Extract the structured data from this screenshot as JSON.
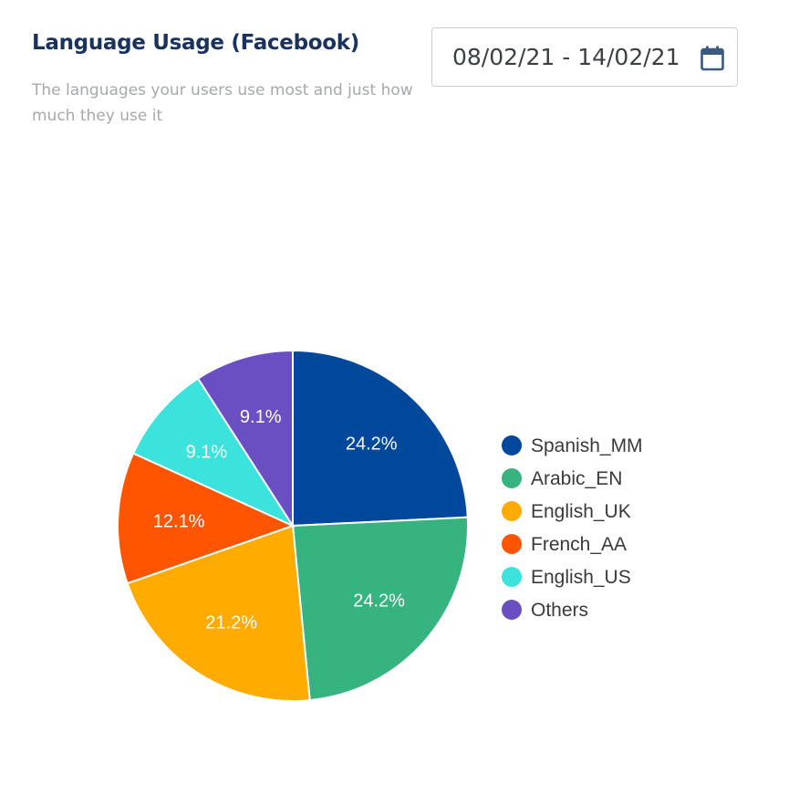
{
  "header": {
    "title": "Language Usage (Facebook)",
    "subtitle": "The languages your users use most and just how much they use it"
  },
  "date_range": {
    "value": "08/02/21 - 14/02/21",
    "icon": "calendar-icon"
  },
  "chart_data": {
    "type": "pie",
    "title": "",
    "legend_position": "right",
    "slices": [
      {
        "name": "Spanish_MM",
        "value": 24.2,
        "label": "24.2%",
        "color": "#00489c"
      },
      {
        "name": "Arabic_EN",
        "value": 24.2,
        "label": "24.2%",
        "color": "#36b37e"
      },
      {
        "name": "English_UK",
        "value": 21.2,
        "label": "21.2%",
        "color": "#ffab00"
      },
      {
        "name": "French_AA",
        "value": 12.1,
        "label": "12.1%",
        "color": "#ff5500"
      },
      {
        "name": "English_US",
        "value": 9.1,
        "label": "9.1%",
        "color": "#3ce3dc"
      },
      {
        "name": "Others",
        "value": 9.1,
        "label": "9.1%",
        "color": "#6a4fc2"
      }
    ]
  }
}
